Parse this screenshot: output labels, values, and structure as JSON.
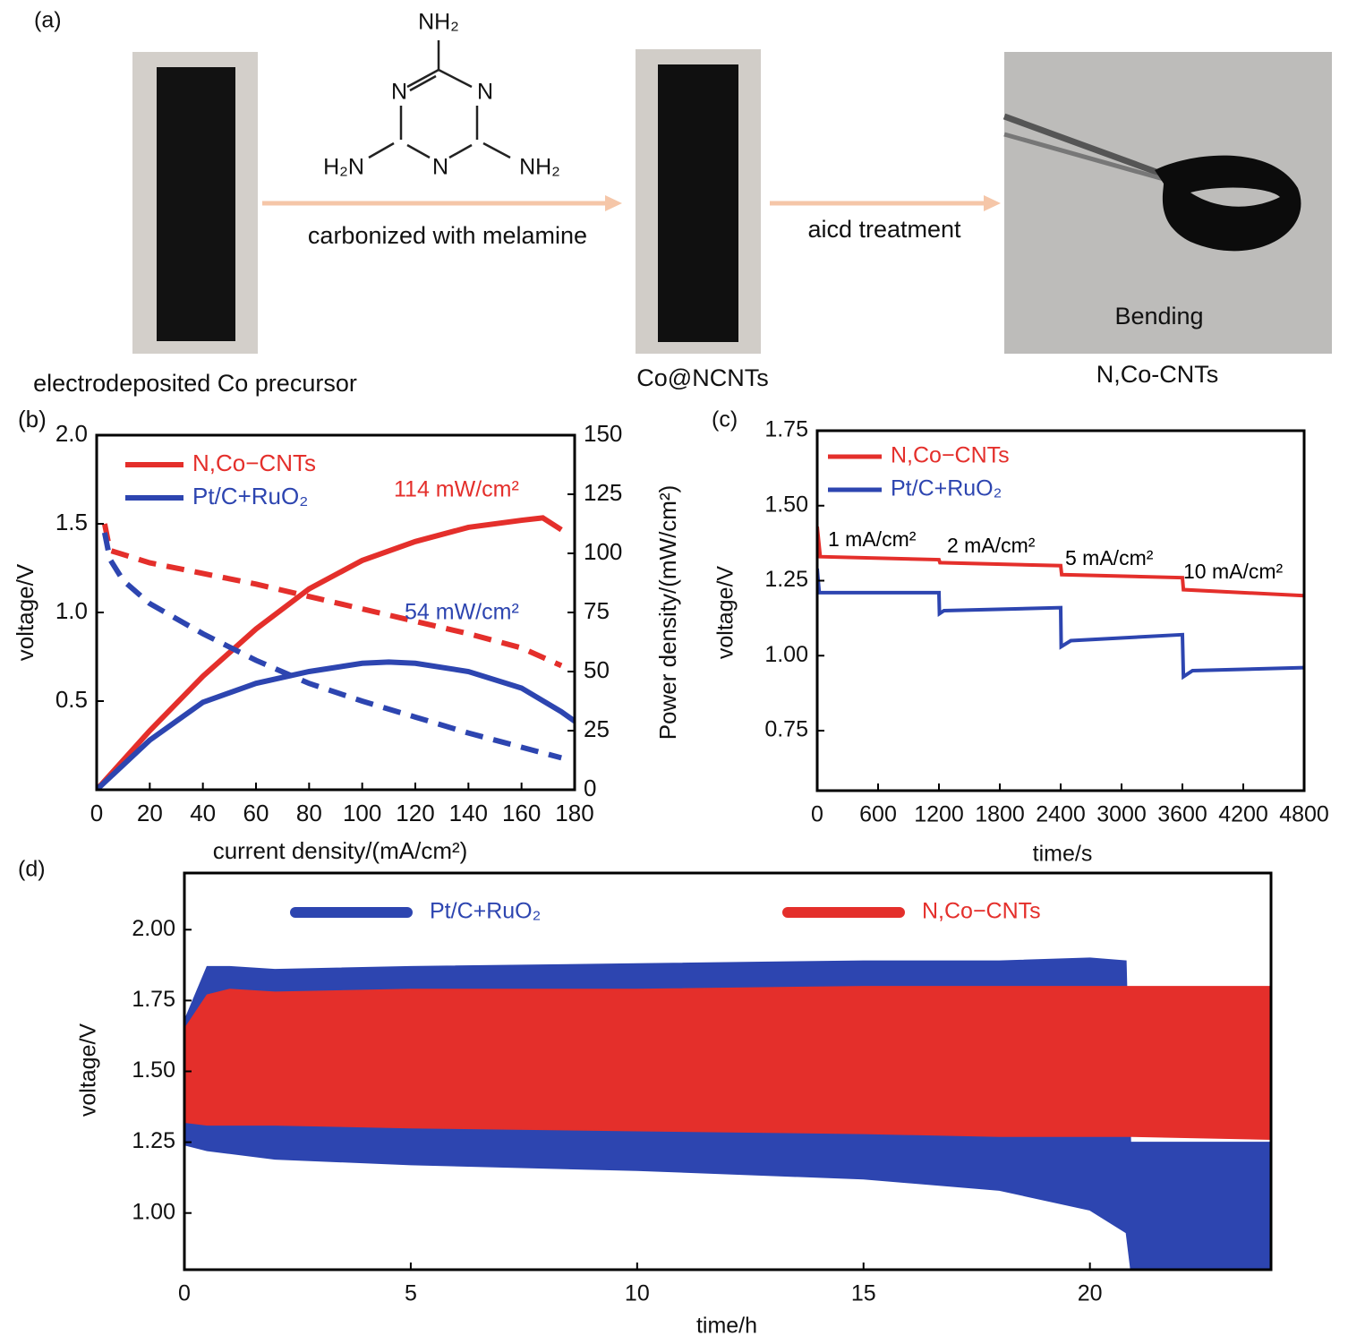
{
  "diagram": {
    "panel_label": "(a)",
    "steps": [
      {
        "label": "electrodeposited Co precursor"
      },
      {
        "label": "Co@NCNTs"
      },
      {
        "label": "N,Co-CNTs",
        "annotation": "Bending"
      }
    ],
    "arrows": [
      {
        "label": "carbonized with melamine"
      },
      {
        "label": "aicd treatment"
      }
    ],
    "molecule": {
      "atoms": [
        "NH₂",
        "N",
        "N",
        "H₂N",
        "N",
        "NH₂"
      ]
    }
  },
  "chart_data": [
    {
      "panel_label": "(b)",
      "type": "line",
      "xlabel": "current density/(mA/cm²)",
      "ylabel": "voltage/V",
      "y2label": "Power density/(mW/cm²)",
      "xlim": [
        0,
        180
      ],
      "xticks": [
        0,
        20,
        40,
        60,
        80,
        100,
        120,
        140,
        160,
        180
      ],
      "ylim": [
        0,
        2
      ],
      "yticks": [
        0.5,
        {
          "value": 1,
          "label": "1.0"
        },
        1.5,
        {
          "value": 2,
          "label": "2.0"
        }
      ],
      "y2lim": [
        0,
        150
      ],
      "y2ticks": [
        0,
        25,
        50,
        75,
        100,
        125,
        150
      ],
      "legend": "upper left",
      "series": [
        {
          "name": "N,Co−CNTs",
          "color": "#e42f2b",
          "axis": "y2",
          "x": [
            0,
            20,
            40,
            60,
            80,
            100,
            120,
            140,
            160,
            168,
            175
          ],
          "values": [
            0,
            25,
            48,
            68,
            85,
            97,
            105,
            111,
            114,
            115,
            110
          ]
        },
        {
          "name": "Pt/C+RuO₂",
          "color": "#2d45b0",
          "axis": "y2",
          "x": [
            0,
            20,
            40,
            60,
            80,
            100,
            110,
            120,
            140,
            160,
            175,
            180
          ],
          "values": [
            0,
            21,
            37,
            45,
            50,
            53.5,
            54,
            53.5,
            50,
            43,
            33,
            29
          ]
        },
        {
          "color": "#e42f2b",
          "dashed": true,
          "x": [
            3,
            5,
            20,
            40,
            60,
            80,
            100,
            120,
            140,
            160,
            175
          ],
          "values": [
            1.5,
            1.35,
            1.28,
            1.22,
            1.16,
            1.09,
            1.02,
            0.95,
            0.88,
            0.8,
            0.7
          ]
        },
        {
          "color": "#2d45b0",
          "dashed": true,
          "x": [
            3,
            5,
            10,
            20,
            40,
            60,
            80,
            100,
            120,
            140,
            160,
            175
          ],
          "values": [
            1.45,
            1.3,
            1.18,
            1.05,
            0.88,
            0.73,
            0.6,
            0.5,
            0.41,
            0.32,
            0.24,
            0.18
          ]
        }
      ],
      "annotations": [
        {
          "text": "114 mW/cm²",
          "color": "#e42f2b"
        },
        {
          "text": "54 mW/cm²",
          "color": "#2d45b0"
        }
      ]
    },
    {
      "panel_label": "(c)",
      "type": "line",
      "xlabel": "time/s",
      "ylabel": "voltage/V",
      "xlim": [
        0,
        4800
      ],
      "xticks": [
        0,
        600,
        1200,
        1800,
        2400,
        3000,
        3600,
        4200,
        4800
      ],
      "ylim": [
        0.55,
        1.75
      ],
      "yticks": [
        0.75,
        {
          "value": 1,
          "label": "1.00"
        },
        1.25,
        {
          "value": 1.5,
          "label": "1.50"
        },
        1.75
      ],
      "legend": "upper left",
      "series": [
        {
          "name": "N,Co−CNTs",
          "color": "#e42f2b",
          "x": [
            0,
            30,
            1200,
            1210,
            2400,
            2410,
            3600,
            3610,
            4800
          ],
          "values": [
            1.43,
            1.33,
            1.32,
            1.31,
            1.3,
            1.27,
            1.26,
            1.22,
            1.2
          ]
        },
        {
          "name": "Pt/C+RuO₂",
          "color": "#2d45b0",
          "x": [
            0,
            20,
            1200,
            1205,
            1250,
            2400,
            2405,
            2500,
            3600,
            3610,
            3700,
            4800
          ],
          "values": [
            1.29,
            1.21,
            1.21,
            1.14,
            1.15,
            1.16,
            1.03,
            1.05,
            1.07,
            0.93,
            0.95,
            0.96
          ]
        }
      ],
      "annotations": [
        {
          "text": "1 mA/cm²",
          "color": "#000000"
        },
        {
          "text": "2 mA/cm²",
          "color": "#000000"
        },
        {
          "text": "5 mA/cm²",
          "color": "#000000"
        },
        {
          "text": "10 mA/cm²",
          "color": "#000000"
        }
      ]
    },
    {
      "panel_label": "(d)",
      "type": "band",
      "xlabel": "time/h",
      "ylabel": "voltage/V",
      "xlim": [
        0,
        24
      ],
      "xticks": [
        0,
        5,
        10,
        15,
        20
      ],
      "ylim": [
        0.8,
        2.2
      ],
      "yticks": [
        {
          "value": 1,
          "label": "1.00"
        },
        1.25,
        {
          "value": 1.5,
          "label": "1.50"
        },
        1.75,
        {
          "value": 2,
          "label": "2.00"
        }
      ],
      "legend": "top",
      "x": [
        0,
        0.5,
        1,
        2,
        5,
        10,
        15,
        18,
        20,
        20.8,
        20.9,
        24
      ],
      "series": [
        {
          "name": "Pt/C+RuO₂",
          "color": "#2d45b0",
          "upper": [
            1.68,
            1.87,
            1.87,
            1.86,
            1.87,
            1.88,
            1.89,
            1.89,
            1.9,
            1.89,
            1.25,
            1.25
          ],
          "lower": [
            1.24,
            1.22,
            1.21,
            1.19,
            1.17,
            1.15,
            1.12,
            1.08,
            1.01,
            0.93,
            0.8,
            0.8
          ]
        },
        {
          "name": "N,Co−CNTs",
          "color": "#e42f2b",
          "upper": [
            1.65,
            1.77,
            1.79,
            1.78,
            1.79,
            1.79,
            1.8,
            1.8,
            1.8,
            1.8,
            1.8,
            1.8
          ],
          "lower": [
            1.32,
            1.31,
            1.31,
            1.31,
            1.3,
            1.29,
            1.28,
            1.27,
            1.27,
            1.27,
            1.27,
            1.26
          ]
        }
      ]
    }
  ]
}
